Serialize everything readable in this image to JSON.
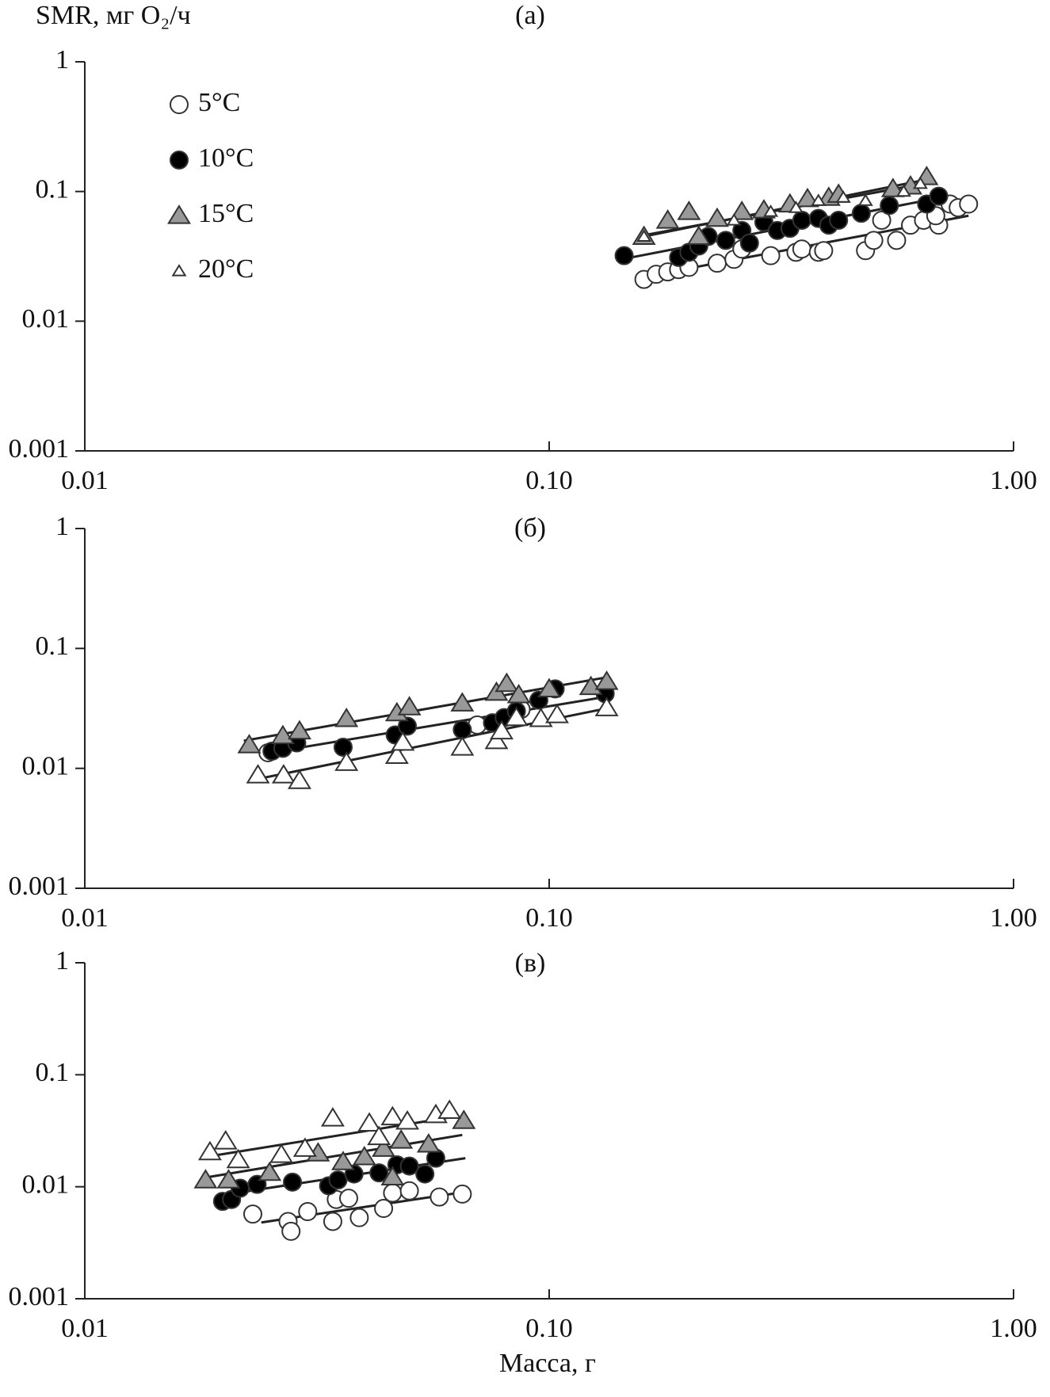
{
  "chart_data": [
    {
      "type": "scatter",
      "title": "(а)",
      "ylabel": "SMR, мг O₂/ч",
      "log_scale": true,
      "legend": "upper left",
      "xlim": [
        0.01,
        1
      ],
      "ylim": [
        0.001,
        1
      ],
      "xticks": [
        0.01,
        {
          "value": 0.1,
          "label": "0.10"
        },
        {
          "value": 1,
          "label": "1.00"
        }
      ],
      "yticks": [
        0.001,
        0.01,
        0.1,
        1
      ],
      "series": [
        {
          "name": "5°C",
          "marker": "circle",
          "color": "#ffffff",
          "x": [
            0.16,
            0.17,
            0.18,
            0.19,
            0.2,
            0.23,
            0.25,
            0.26,
            0.3,
            0.34,
            0.35,
            0.38,
            0.39,
            0.48,
            0.5,
            0.52,
            0.56,
            0.6,
            0.64,
            0.69,
            0.73,
            0.76,
            0.8,
            0.68
          ],
          "values": [
            0.021,
            0.023,
            0.024,
            0.025,
            0.026,
            0.028,
            0.03,
            0.036,
            0.032,
            0.034,
            0.036,
            0.034,
            0.035,
            0.035,
            0.042,
            0.06,
            0.042,
            0.055,
            0.06,
            0.055,
            0.08,
            0.075,
            0.08,
            0.065
          ],
          "fit": {
            "x": [
              0.16,
              0.8
            ],
            "values": [
              0.022,
              0.065
            ]
          }
        },
        {
          "name": "10°C",
          "marker": "circle",
          "color": "#000000",
          "x": [
            0.145,
            0.19,
            0.2,
            0.21,
            0.22,
            0.24,
            0.26,
            0.27,
            0.29,
            0.31,
            0.33,
            0.35,
            0.38,
            0.4,
            0.42,
            0.47,
            0.54,
            0.65,
            0.69
          ],
          "values": [
            0.032,
            0.031,
            0.034,
            0.038,
            0.045,
            0.042,
            0.05,
            0.04,
            0.058,
            0.05,
            0.052,
            0.06,
            0.062,
            0.055,
            0.06,
            0.068,
            0.078,
            0.08,
            0.092
          ],
          "fit": {
            "x": [
              0.15,
              0.7
            ],
            "values": [
              0.031,
              0.09
            ]
          }
        },
        {
          "name": "15°C",
          "marker": "triangle",
          "color": "#999999",
          "x": [
            0.16,
            0.18,
            0.2,
            0.21,
            0.23,
            0.26,
            0.29,
            0.33,
            0.36,
            0.4,
            0.42,
            0.55,
            0.6,
            0.65
          ],
          "values": [
            0.045,
            0.06,
            0.07,
            0.045,
            0.062,
            0.07,
            0.072,
            0.08,
            0.088,
            0.09,
            0.095,
            0.105,
            0.11,
            0.13
          ],
          "fit": {
            "x": [
              0.16,
              0.66
            ],
            "values": [
              0.045,
              0.125
            ]
          }
        },
        {
          "name": "20°C",
          "marker": "small-triangle",
          "color": "#ffffff",
          "x": [
            0.16,
            0.25,
            0.3,
            0.34,
            0.38,
            0.43,
            0.48,
            0.58,
            0.63
          ],
          "values": [
            0.045,
            0.06,
            0.07,
            0.075,
            0.085,
            0.09,
            0.085,
            0.1,
            0.115
          ],
          "fit": {
            "x": [
              0.16,
              0.64
            ],
            "values": [
              0.046,
              0.115
            ]
          }
        }
      ]
    },
    {
      "type": "scatter",
      "title": "(б)",
      "log_scale": true,
      "xlim": [
        0.01,
        1
      ],
      "ylim": [
        0.001,
        1
      ],
      "xticks": [
        0.01,
        {
          "value": 0.1,
          "label": "0.10"
        },
        {
          "value": 1,
          "label": "1.00"
        }
      ],
      "yticks": [
        0.001,
        0.01,
        0.1,
        1
      ],
      "series": [
        {
          "marker": "circle",
          "color": "#ffffff",
          "x": [
            0.0248,
            0.07,
            0.087
          ],
          "values": [
            0.0135,
            0.023,
            0.031
          ]
        },
        {
          "marker": "circle",
          "color": "#000000",
          "x": [
            0.0253,
            0.0267,
            0.0286,
            0.036,
            0.0466,
            0.0495,
            0.065,
            0.0755,
            0.08,
            0.085,
            0.095,
            0.103,
            0.132
          ],
          "values": [
            0.0139,
            0.0147,
            0.0163,
            0.015,
            0.019,
            0.0225,
            0.021,
            0.024,
            0.0265,
            0.03,
            0.037,
            0.046,
            0.042
          ],
          "fit": {
            "x": [
              0.025,
              0.135
            ],
            "values": [
              0.0135,
              0.04
            ]
          }
        },
        {
          "marker": "triangle",
          "color": "#999999",
          "x": [
            0.0226,
            0.0267,
            0.029,
            0.0366,
            0.047,
            0.05,
            0.065,
            0.077,
            0.081,
            0.086,
            0.1,
            0.123,
            0.133
          ],
          "values": [
            0.0157,
            0.0187,
            0.0205,
            0.026,
            0.029,
            0.0325,
            0.035,
            0.043,
            0.051,
            0.041,
            0.046,
            0.048,
            0.053
          ],
          "fit": {
            "x": [
              0.022,
              0.135
            ],
            "values": [
              0.017,
              0.058
            ]
          }
        },
        {
          "marker": "triangle",
          "color": "#ffffff",
          "x": [
            0.0236,
            0.0268,
            0.029,
            0.0366,
            0.047,
            0.0484,
            0.065,
            0.077,
            0.079,
            0.085,
            0.096,
            0.104,
            0.133
          ],
          "values": [
            0.0088,
            0.0088,
            0.0079,
            0.0112,
            0.0128,
            0.0165,
            0.015,
            0.017,
            0.0205,
            0.0265,
            0.026,
            0.028,
            0.032
          ],
          "fit": {
            "x": [
              0.023,
              0.135
            ],
            "values": [
              0.008,
              0.032
            ]
          }
        }
      ]
    },
    {
      "type": "scatter",
      "title": "(в)",
      "xlabel": "Масса, г",
      "log_scale": true,
      "xlim": [
        0.01,
        1
      ],
      "ylim": [
        0.001,
        1
      ],
      "xticks": [
        0.01,
        {
          "value": 0.1,
          "label": "0.10"
        },
        {
          "value": 1,
          "label": "1.00"
        }
      ],
      "yticks": [
        0.001,
        0.01,
        0.1,
        1
      ],
      "series": [
        {
          "marker": "circle",
          "color": "#ffffff",
          "x": [
            0.023,
            0.0274,
            0.0278,
            0.0302,
            0.0342,
            0.0348,
            0.037,
            0.039,
            0.044,
            0.046,
            0.05,
            0.058,
            0.065
          ],
          "values": [
            0.0057,
            0.0049,
            0.004,
            0.006,
            0.0049,
            0.0077,
            0.0079,
            0.0053,
            0.0064,
            0.0088,
            0.0092,
            0.0081,
            0.0086
          ],
          "fit": {
            "x": [
              0.024,
              0.066
            ],
            "values": [
              0.0048,
              0.009
            ]
          }
        },
        {
          "marker": "circle",
          "color": "#000000",
          "x": [
            0.0198,
            0.0207,
            0.0216,
            0.0235,
            0.028,
            0.0335,
            0.0351,
            0.038,
            0.043,
            0.047,
            0.05,
            0.054,
            0.057
          ],
          "values": [
            0.0074,
            0.0077,
            0.0097,
            0.0105,
            0.011,
            0.0102,
            0.0115,
            0.013,
            0.0133,
            0.0157,
            0.0153,
            0.013,
            0.018
          ],
          "fit": {
            "x": [
              0.02,
              0.066
            ],
            "values": [
              0.0085,
              0.018
            ]
          }
        },
        {
          "marker": "triangle",
          "color": "#999999",
          "x": [
            0.0182,
            0.0204,
            0.025,
            0.0318,
            0.036,
            0.04,
            0.044,
            0.046,
            0.048,
            0.055,
            0.0655
          ],
          "values": [
            0.0115,
            0.0115,
            0.0134,
            0.02,
            0.0167,
            0.0185,
            0.022,
            0.0122,
            0.026,
            0.024,
            0.039
          ],
          "fit": {
            "x": [
              0.018,
              0.065
            ],
            "values": [
              0.012,
              0.029
            ]
          }
        },
        {
          "marker": "triangle",
          "color": "#ffffff",
          "x": [
            0.0186,
            0.0201,
            0.0214,
            0.0265,
            0.0298,
            0.0342,
            0.041,
            0.046,
            0.0495,
            0.057,
            0.061,
            0.043
          ],
          "values": [
            0.0205,
            0.0256,
            0.0174,
            0.0194,
            0.022,
            0.041,
            0.037,
            0.042,
            0.0385,
            0.044,
            0.048,
            0.028
          ],
          "fit": {
            "x": [
              0.019,
              0.062
            ],
            "values": [
              0.019,
              0.042
            ]
          }
        }
      ]
    }
  ]
}
